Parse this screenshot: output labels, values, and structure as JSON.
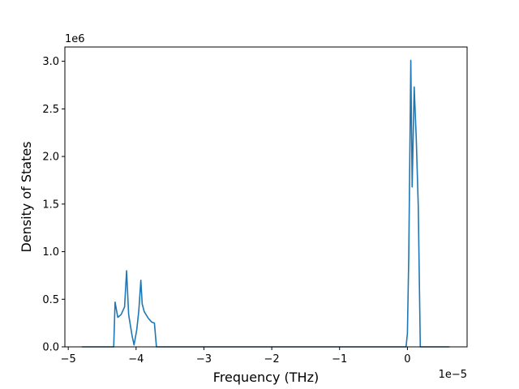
{
  "chart_data": {
    "type": "line",
    "title": "",
    "xlabel": "Frequency (THz)",
    "ylabel": "Density of States",
    "x_offset_label": "1e−5",
    "y_offset_label": "1e6",
    "xlim": [
      -5.05,
      0.88
    ],
    "ylim": [
      0.0,
      3.15
    ],
    "grid": false,
    "x_ticks": [
      {
        "value": -5,
        "label": "−5"
      },
      {
        "value": -4,
        "label": "−4"
      },
      {
        "value": -3,
        "label": "−3"
      },
      {
        "value": -2,
        "label": "−2"
      },
      {
        "value": -1,
        "label": "−1"
      },
      {
        "value": 0,
        "label": "0"
      }
    ],
    "y_ticks": [
      {
        "value": 0.0,
        "label": "0.0"
      },
      {
        "value": 0.5,
        "label": "0.5"
      },
      {
        "value": 1.0,
        "label": "1.0"
      },
      {
        "value": 1.5,
        "label": "1.5"
      },
      {
        "value": 2.0,
        "label": "2.0"
      },
      {
        "value": 2.5,
        "label": "2.5"
      },
      {
        "value": 3.0,
        "label": "3.0"
      }
    ],
    "series": [
      {
        "color": "#1f77b4",
        "x": [
          -4.8,
          -4.33,
          -4.31,
          -4.27,
          -4.22,
          -4.17,
          -4.14,
          -4.11,
          -4.06,
          -4.03,
          -3.99,
          -3.96,
          -3.93,
          -3.91,
          -3.88,
          -3.82,
          -3.77,
          -3.73,
          -3.7,
          -3.5,
          -2.5,
          -1.5,
          -0.5,
          -0.02,
          0.0,
          0.02,
          0.05,
          0.07,
          0.1,
          0.13,
          0.16,
          0.19,
          0.3,
          0.62
        ],
        "y": [
          0.0,
          0.0,
          0.47,
          0.31,
          0.34,
          0.42,
          0.8,
          0.34,
          0.12,
          0.02,
          0.18,
          0.38,
          0.7,
          0.45,
          0.37,
          0.3,
          0.26,
          0.25,
          0.0,
          0.0,
          0.0,
          0.0,
          0.0,
          0.0,
          0.14,
          0.95,
          3.01,
          1.68,
          2.73,
          2.2,
          1.48,
          0.0,
          0.0,
          0.0
        ]
      }
    ]
  }
}
